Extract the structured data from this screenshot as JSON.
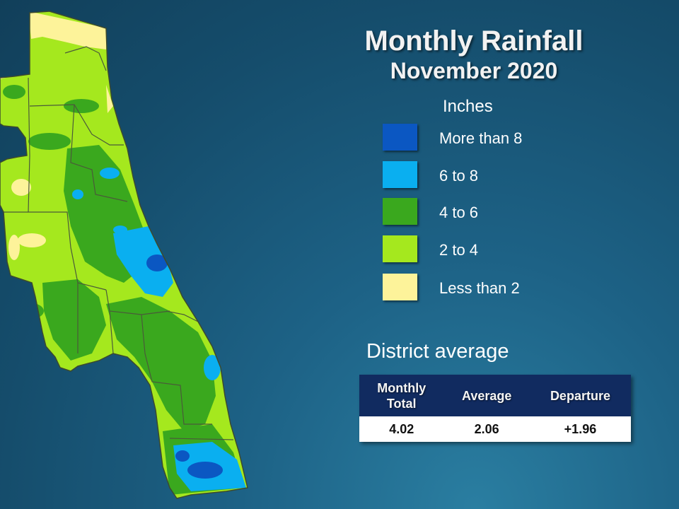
{
  "title": "Monthly Rainfall",
  "subtitle": "November 2020",
  "legend": {
    "units_label": "Inches",
    "items": [
      {
        "label": "More than 8",
        "color": "#0b57c2"
      },
      {
        "label": "6 to 8",
        "color": "#0aaff0"
      },
      {
        "label": "4 to 6",
        "color": "#3aa81e"
      },
      {
        "label": "2 to 4",
        "color": "#a5e81e"
      },
      {
        "label": "Less than 2",
        "color": "#fdf39a"
      }
    ]
  },
  "district_average": {
    "heading": "District average",
    "columns": [
      "Monthly\nTotal",
      "Average",
      "Departure"
    ],
    "values": [
      "4.02",
      "2.06",
      "+1.96"
    ]
  },
  "map": {
    "region_colors": {
      "base": "#a5e81e",
      "wet": "#3aa81e",
      "very_wet": "#0aaff0",
      "extreme": "#0b57c2",
      "dry": "#fdf39a",
      "county_lines": "#4a5a3a"
    }
  }
}
